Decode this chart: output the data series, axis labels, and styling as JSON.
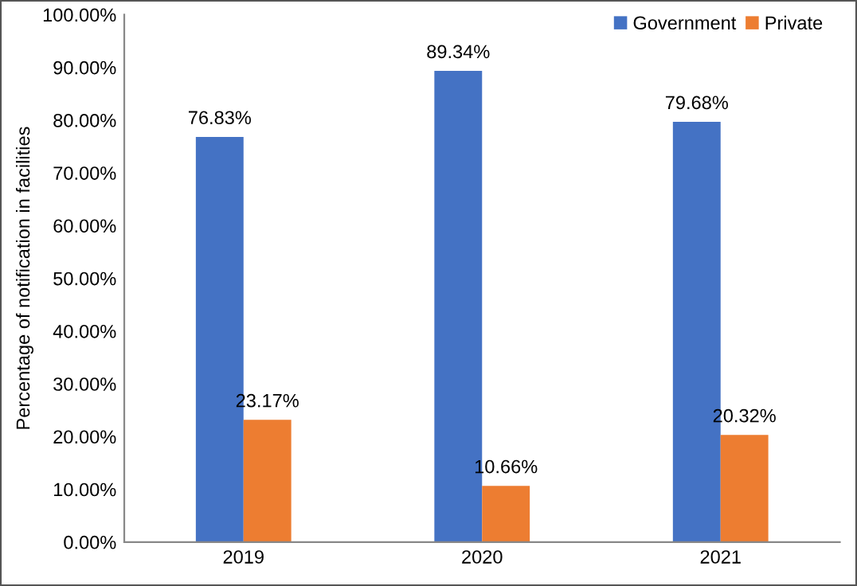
{
  "chart_data": {
    "type": "bar",
    "ylabel": "Percentage of notification in facilities",
    "categories": [
      "2019",
      "2020",
      "2021"
    ],
    "series": [
      {
        "name": "Government",
        "color": "#4472c4",
        "values": [
          76.83,
          89.34,
          79.68
        ],
        "value_labels": [
          "76.83%",
          "89.34%",
          "79.68%"
        ]
      },
      {
        "name": "Private",
        "color": "#ed7d31",
        "values": [
          23.17,
          10.66,
          20.32
        ],
        "value_labels": [
          "23.17%",
          "10.66%",
          "20.32%"
        ]
      }
    ],
    "ylim": [
      0,
      100
    ],
    "yticks": [
      {
        "value": 0,
        "label": "0.00%"
      },
      {
        "value": 10,
        "label": "10.00%"
      },
      {
        "value": 20,
        "label": "20.00%"
      },
      {
        "value": 30,
        "label": "30.00%"
      },
      {
        "value": 40,
        "label": "40.00%"
      },
      {
        "value": 50,
        "label": "50.00%"
      },
      {
        "value": 60,
        "label": "60.00%"
      },
      {
        "value": 70,
        "label": "70.00%"
      },
      {
        "value": 80,
        "label": "80.00%"
      },
      {
        "value": 90,
        "label": "90.00%"
      },
      {
        "value": 100,
        "label": "100.00%"
      }
    ],
    "grid": false,
    "legend": "top right"
  }
}
